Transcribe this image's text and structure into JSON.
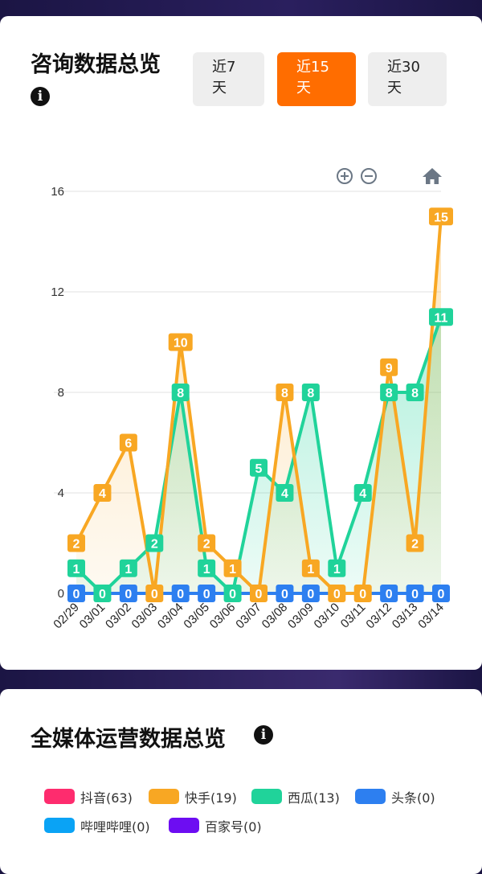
{
  "consult": {
    "title": "咨询数据总览",
    "range_buttons": [
      {
        "label": "近7\n天",
        "active": false
      },
      {
        "label": "近15\n天",
        "active": true
      },
      {
        "label": "近30\n天",
        "active": false
      }
    ]
  },
  "media": {
    "title": "全媒体运营数据总览",
    "legend": [
      {
        "label": "抖音(63)",
        "color": "#fe2c6e"
      },
      {
        "label": "快手(19)",
        "color": "#f8a723"
      },
      {
        "label": "西瓜(13)",
        "color": "#20d39a"
      },
      {
        "label": "头条(0)",
        "color": "#2d7ff0"
      },
      {
        "label": "哔哩哔哩(0)",
        "color": "#0aa3f5"
      },
      {
        "label": "百家号(0)",
        "color": "#6d0df2"
      }
    ]
  },
  "chart_data": {
    "type": "line",
    "categories": [
      "02/29",
      "03/01",
      "03/02",
      "03/03",
      "03/04",
      "03/05",
      "03/06",
      "03/07",
      "03/08",
      "03/09",
      "03/10",
      "03/11",
      "03/12",
      "03/13",
      "03/14"
    ],
    "ylim": [
      0,
      16
    ],
    "yticks": [
      "0",
      "4",
      "8",
      "12",
      "16"
    ],
    "grid": true,
    "series": [
      {
        "key": "toutiao",
        "color": "#2d7ff0",
        "area": false,
        "values": [
          0,
          0,
          0,
          0,
          0,
          0,
          0,
          0,
          0,
          0,
          0,
          0,
          0,
          0,
          0
        ]
      },
      {
        "key": "xigua",
        "color": "#20d39a",
        "area": true,
        "values": [
          1,
          0,
          1,
          2,
          8,
          1,
          0,
          5,
          4,
          8,
          1,
          4,
          8,
          8,
          11
        ]
      },
      {
        "key": "kuaishou",
        "color": "#f8a723",
        "area": true,
        "values": [
          2,
          4,
          6,
          0,
          10,
          2,
          1,
          0,
          8,
          1,
          0,
          0,
          9,
          2,
          15
        ]
      }
    ],
    "labels": [
      {
        "x": 0,
        "y": 0,
        "text": "0",
        "color": "#2d7ff0"
      },
      {
        "x": 1,
        "y": 0,
        "text": "0",
        "color": "#20d39a"
      },
      {
        "x": 2,
        "y": 0,
        "text": "0",
        "color": "#2d7ff0"
      },
      {
        "x": 3,
        "y": 0,
        "text": "0",
        "color": "#f8a723"
      },
      {
        "x": 4,
        "y": 0,
        "text": "0",
        "color": "#2d7ff0"
      },
      {
        "x": 5,
        "y": 0,
        "text": "0",
        "color": "#2d7ff0"
      },
      {
        "x": 6,
        "y": 0,
        "text": "0",
        "color": "#20d39a"
      },
      {
        "x": 7,
        "y": 0,
        "text": "0",
        "color": "#f8a723"
      },
      {
        "x": 8,
        "y": 0,
        "text": "0",
        "color": "#2d7ff0"
      },
      {
        "x": 9,
        "y": 0,
        "text": "0",
        "color": "#2d7ff0"
      },
      {
        "x": 10,
        "y": 0,
        "text": "0",
        "color": "#f8a723"
      },
      {
        "x": 11,
        "y": 0,
        "text": "0",
        "color": "#f8a723"
      },
      {
        "x": 12,
        "y": 0,
        "text": "0",
        "color": "#2d7ff0"
      },
      {
        "x": 13,
        "y": 0,
        "text": "0",
        "color": "#2d7ff0"
      },
      {
        "x": 14,
        "y": 0,
        "text": "0",
        "color": "#2d7ff0"
      },
      {
        "x": 0,
        "y": 1,
        "text": "1",
        "color": "#20d39a"
      },
      {
        "x": 2,
        "y": 1,
        "text": "1",
        "color": "#20d39a"
      },
      {
        "x": 3,
        "y": 2,
        "text": "2",
        "color": "#20d39a"
      },
      {
        "x": 4,
        "y": 8,
        "text": "8",
        "color": "#20d39a"
      },
      {
        "x": 5,
        "y": 1,
        "text": "1",
        "color": "#20d39a"
      },
      {
        "x": 7,
        "y": 5,
        "text": "5",
        "color": "#20d39a"
      },
      {
        "x": 8,
        "y": 4,
        "text": "4",
        "color": "#20d39a"
      },
      {
        "x": 9,
        "y": 8,
        "text": "8",
        "color": "#20d39a"
      },
      {
        "x": 10,
        "y": 1,
        "text": "1",
        "color": "#20d39a"
      },
      {
        "x": 11,
        "y": 4,
        "text": "4",
        "color": "#20d39a"
      },
      {
        "x": 12,
        "y": 8,
        "text": "8",
        "color": "#20d39a"
      },
      {
        "x": 13,
        "y": 8,
        "text": "8",
        "color": "#20d39a"
      },
      {
        "x": 14,
        "y": 11,
        "text": "11",
        "color": "#20d39a"
      },
      {
        "x": 0,
        "y": 2,
        "text": "2",
        "color": "#f8a723"
      },
      {
        "x": 1,
        "y": 4,
        "text": "4",
        "color": "#f8a723"
      },
      {
        "x": 2,
        "y": 6,
        "text": "6",
        "color": "#f8a723"
      },
      {
        "x": 4,
        "y": 10,
        "text": "10",
        "color": "#f8a723"
      },
      {
        "x": 5,
        "y": 2,
        "text": "2",
        "color": "#f8a723"
      },
      {
        "x": 6,
        "y": 1,
        "text": "1",
        "color": "#f8a723"
      },
      {
        "x": 8,
        "y": 8,
        "text": "8",
        "color": "#f8a723"
      },
      {
        "x": 9,
        "y": 1,
        "text": "1",
        "color": "#f8a723"
      },
      {
        "x": 12,
        "y": 9,
        "text": "9",
        "color": "#f8a723"
      },
      {
        "x": 13,
        "y": 2,
        "text": "2",
        "color": "#f8a723"
      },
      {
        "x": 14,
        "y": 15,
        "text": "15",
        "color": "#f8a723"
      }
    ],
    "toolbox": [
      "zoom-in-icon",
      "zoom-out-icon",
      "home-icon"
    ]
  }
}
